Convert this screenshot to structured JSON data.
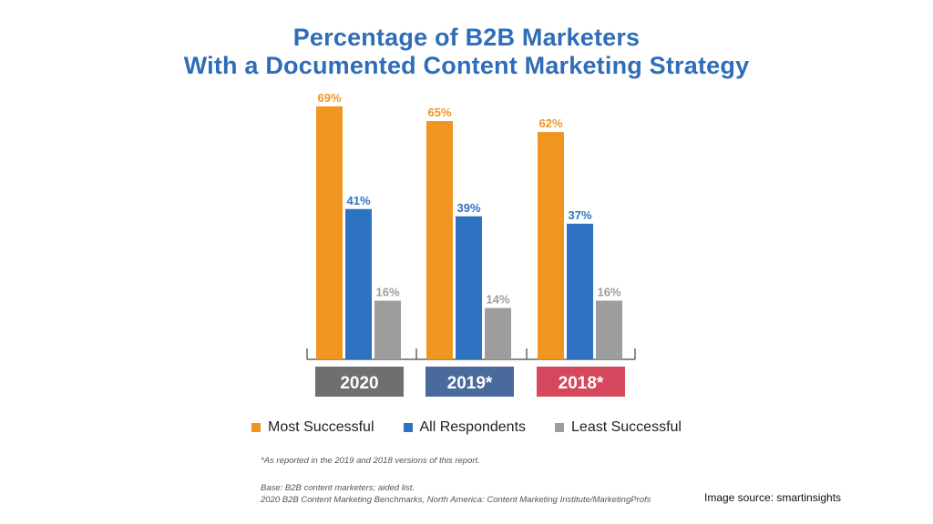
{
  "chart_data": {
    "type": "bar",
    "title_line1": "Percentage of B2B Marketers",
    "title_line2": "With a Documented Content Marketing Strategy",
    "categories": [
      "2020",
      "2019*",
      "2018*"
    ],
    "category_colors": [
      "#6f6f6f",
      "#4a6a9c",
      "#d4475c"
    ],
    "series": [
      {
        "name": "Most Successful",
        "color": "#f0951f",
        "values": [
          69,
          65,
          62
        ],
        "labels": [
          "69%",
          "65%",
          "62%"
        ]
      },
      {
        "name": "All Respondents",
        "color": "#2e73c2",
        "values": [
          41,
          39,
          37
        ],
        "labels": [
          "41%",
          "39%",
          "37%"
        ]
      },
      {
        "name": "Least Successful",
        "color": "#9d9d9d",
        "values": [
          16,
          14,
          16
        ],
        "labels": [
          "16%",
          "14%",
          "16%"
        ]
      }
    ],
    "ylim": [
      0,
      100
    ],
    "xlabel": "",
    "ylabel": ""
  },
  "footnote": "*As reported in the 2019 and 2018 versions of this report.",
  "base_note": "Base: B2B content marketers; aided list.",
  "source_note": "2020 B2B Content Marketing Benchmarks, North America: Content Marketing Institute/MarketingProfs",
  "image_source": "Image source: smartinsights"
}
